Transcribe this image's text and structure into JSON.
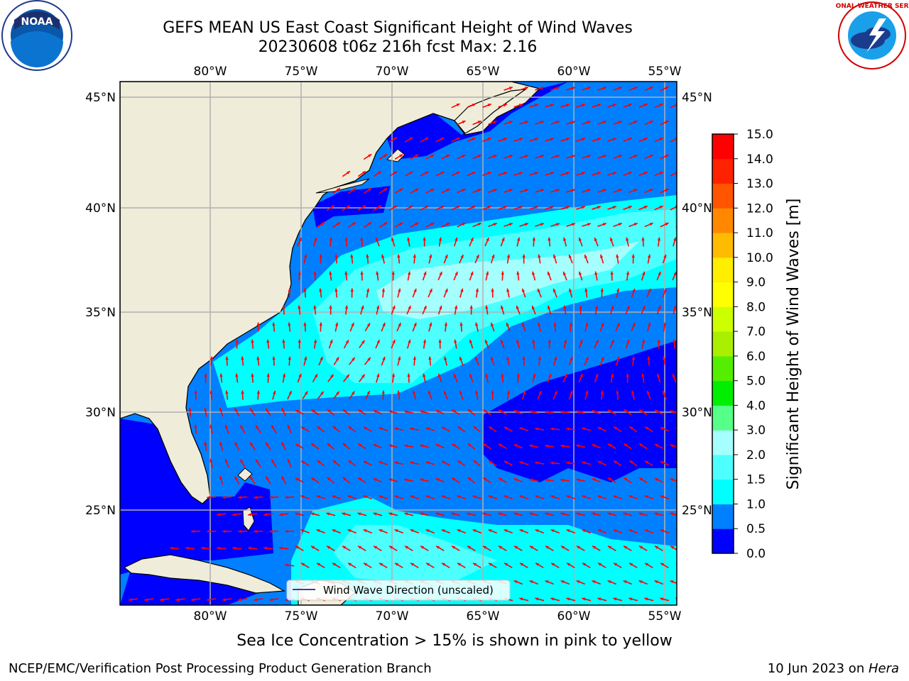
{
  "header": {
    "title_line1": "GEFS MEAN US East Coast Significant Height of Wind Waves",
    "title_line2": "20230608 t06z 216h fcst   Max: 2.16",
    "left_logo": {
      "icon": "noaa-logo",
      "text": "NOAA"
    },
    "right_logo": {
      "icon": "nws-logo",
      "text": "NATIONAL WEATHER SERVICE"
    }
  },
  "map": {
    "lon_labels_top": [
      "80°W",
      "75°W",
      "70°W",
      "65°W",
      "60°W",
      "55°W"
    ],
    "lon_labels_bottom": [
      "80°W",
      "75°W",
      "70°W",
      "65°W",
      "60°W",
      "55°W"
    ],
    "lat_labels_left": [
      "45°N",
      "40°N",
      "35°N",
      "30°N",
      "25°N"
    ],
    "lat_labels_right": [
      "45°N",
      "40°N",
      "35°N",
      "30°N",
      "25°N"
    ],
    "legend_label": "Wind Wave Direction (unscaled)"
  },
  "colorbar": {
    "label": "Significant Height of Wind Waves [m]",
    "ticks": [
      "0.0",
      "0.5",
      "1.0",
      "1.5",
      "2.0",
      "3.0",
      "4.0",
      "5.0",
      "6.0",
      "7.0",
      "8.0",
      "9.0",
      "10.0",
      "11.0",
      "12.0",
      "13.0",
      "14.0",
      "15.0"
    ],
    "colors": [
      "#0000ff",
      "#0080ff",
      "#00ffff",
      "#4dffff",
      "#a6ffff",
      "#55ff88",
      "#00ee00",
      "#55ee00",
      "#aaee00",
      "#ccff00",
      "#ffff00",
      "#ffee00",
      "#ffbb00",
      "#ff8800",
      "#ff5500",
      "#ff2200",
      "#ff0000"
    ]
  },
  "colors": {
    "land": "#efedd9",
    "arrows": "#ff0000",
    "gridlines": "#b0b0b0"
  },
  "note": "Sea Ice Concentration > 15% is shown in pink to yellow",
  "footer": {
    "left": "NCEP/EMC/Verification Post Processing Product Generation Branch",
    "right_date": "10 Jun 2023 on ",
    "right_host": "Hera"
  }
}
